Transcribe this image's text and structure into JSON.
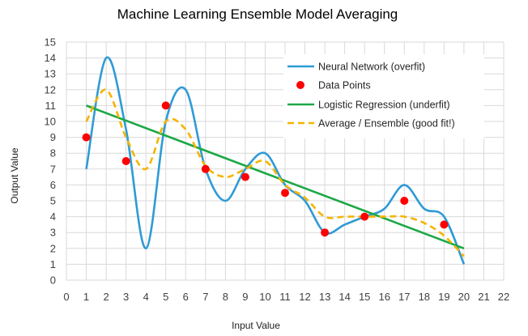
{
  "chart_data": {
    "type": "line",
    "title": "Machine Learning Ensemble Model Averaging",
    "xlabel": "Input Value",
    "ylabel": "Output Value",
    "xlim": [
      0,
      22
    ],
    "ylim": [
      0,
      15
    ],
    "x_ticks": [
      0,
      1,
      2,
      3,
      4,
      5,
      6,
      7,
      8,
      9,
      10,
      11,
      12,
      13,
      14,
      15,
      16,
      17,
      18,
      19,
      20,
      21,
      22
    ],
    "y_ticks": [
      0,
      1,
      2,
      3,
      4,
      5,
      6,
      7,
      8,
      9,
      10,
      11,
      12,
      13,
      14,
      15
    ],
    "grid": true,
    "legend_position": "top-right",
    "series": [
      {
        "name": "Neural Network (overfit)",
        "style": "smooth-line",
        "color": "#2E9BD6",
        "x": [
          1,
          2,
          3,
          4,
          5,
          6,
          7,
          8,
          9,
          10,
          11,
          12,
          13,
          14,
          15,
          16,
          17,
          18,
          19,
          20
        ],
        "values": [
          7,
          14,
          9.5,
          2,
          10,
          12,
          7,
          5,
          7,
          8,
          6,
          5,
          3,
          3.5,
          4,
          4.5,
          6,
          4.5,
          4,
          1
        ]
      },
      {
        "name": "Data Points",
        "style": "markers",
        "color": "#FF0000",
        "x": [
          1,
          3,
          5,
          7,
          9,
          11,
          13,
          15,
          17,
          19
        ],
        "values": [
          9,
          7.5,
          11,
          7,
          6.5,
          5.5,
          3,
          4,
          5,
          3.5
        ]
      },
      {
        "name": "Logistic Regression (underfit)",
        "style": "line",
        "color": "#1DA846",
        "x": [
          1,
          20
        ],
        "values": [
          11,
          2
        ]
      },
      {
        "name": "Average / Ensemble (good fit!)",
        "style": "dashed-smooth-line",
        "color": "#F5B400",
        "x": [
          1,
          2,
          3,
          4,
          5,
          6,
          7,
          8,
          9,
          10,
          11,
          12,
          13,
          14,
          15,
          16,
          17,
          18,
          19,
          20
        ],
        "values": [
          10,
          12,
          9,
          7,
          10,
          9.5,
          7.2,
          6.5,
          7,
          7.5,
          6,
          5.2,
          4,
          4,
          4,
          4,
          4,
          3.6,
          2.8,
          1.5
        ]
      }
    ]
  }
}
